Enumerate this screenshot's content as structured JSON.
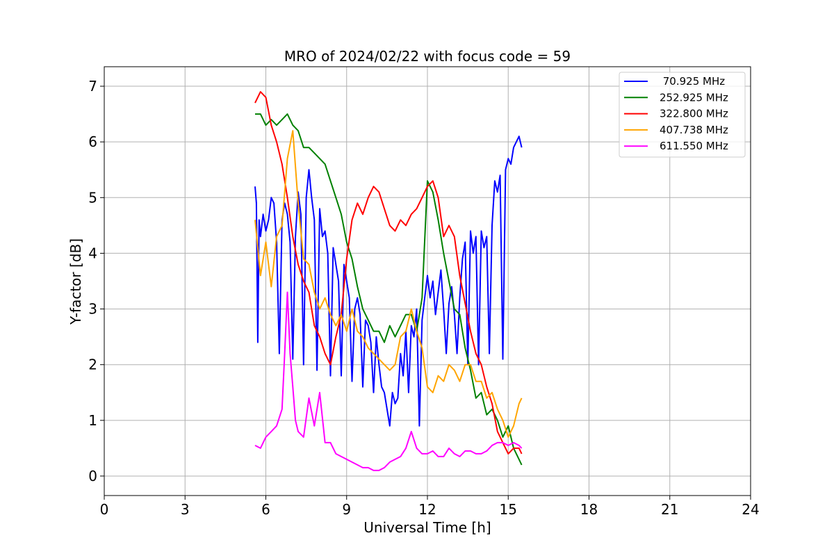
{
  "chart_data": {
    "type": "line",
    "title": "MRO of 2024/02/22 with focus code = 59",
    "xlabel": "Universal Time [h]",
    "ylabel": "Y-factor [dB]",
    "xlim": [
      0,
      24
    ],
    "ylim": [
      -0.35,
      7.35
    ],
    "xticks": [
      0,
      3,
      6,
      9,
      12,
      15,
      18,
      21,
      24
    ],
    "yticks": [
      0,
      1,
      2,
      3,
      4,
      5,
      6,
      7
    ],
    "grid": true,
    "legend_position": "top-right",
    "series": [
      {
        "name": " 70.925 MHz",
        "color": "#0000ff",
        "x": [
          5.6,
          5.65,
          5.7,
          5.75,
          5.8,
          5.9,
          6.0,
          6.1,
          6.2,
          6.3,
          6.4,
          6.5,
          6.6,
          6.7,
          6.8,
          6.9,
          7.0,
          7.1,
          7.2,
          7.3,
          7.4,
          7.5,
          7.6,
          7.7,
          7.8,
          7.9,
          8.0,
          8.1,
          8.2,
          8.3,
          8.4,
          8.5,
          8.6,
          8.7,
          8.8,
          8.9,
          9.0,
          9.1,
          9.2,
          9.3,
          9.4,
          9.5,
          9.6,
          9.7,
          9.8,
          9.9,
          10.0,
          10.1,
          10.2,
          10.3,
          10.4,
          10.5,
          10.6,
          10.7,
          10.8,
          10.9,
          11.0,
          11.1,
          11.2,
          11.3,
          11.4,
          11.5,
          11.6,
          11.7,
          11.8,
          11.9,
          12.0,
          12.1,
          12.2,
          12.3,
          12.4,
          12.5,
          12.6,
          12.7,
          12.8,
          12.9,
          13.0,
          13.1,
          13.2,
          13.3,
          13.4,
          13.5,
          13.6,
          13.7,
          13.8,
          13.9,
          14.0,
          14.1,
          14.2,
          14.3,
          14.4,
          14.5,
          14.6,
          14.7,
          14.8,
          14.9,
          15.0,
          15.1,
          15.2,
          15.3,
          15.4,
          15.5
        ],
        "y": [
          5.2,
          4.9,
          2.4,
          4.6,
          4.3,
          4.7,
          4.4,
          4.6,
          5.0,
          4.9,
          4.2,
          2.2,
          4.6,
          4.9,
          4.7,
          4.2,
          2.1,
          4.3,
          5.1,
          4.7,
          2.0,
          5.0,
          5.5,
          5.0,
          4.6,
          1.9,
          4.8,
          4.3,
          4.4,
          4.0,
          1.8,
          4.1,
          3.8,
          3.5,
          1.8,
          3.8,
          3.5,
          3.2,
          1.7,
          3.0,
          3.2,
          2.9,
          1.6,
          2.8,
          2.7,
          2.4,
          1.5,
          2.5,
          2.0,
          1.6,
          1.5,
          1.2,
          0.9,
          1.5,
          1.3,
          1.4,
          2.2,
          1.8,
          2.6,
          1.5,
          2.7,
          2.5,
          3.0,
          0.9,
          2.8,
          3.2,
          3.6,
          3.2,
          3.5,
          2.9,
          3.3,
          3.7,
          3.0,
          2.2,
          3.1,
          3.4,
          2.9,
          2.2,
          3.2,
          3.9,
          4.2,
          2.0,
          4.4,
          4.0,
          4.3,
          2.0,
          4.4,
          4.1,
          4.3,
          2.2,
          4.5,
          5.3,
          5.1,
          5.4,
          2.1,
          5.5,
          5.7,
          5.6,
          5.9,
          6.0,
          6.1,
          5.9
        ]
      },
      {
        "name": "252.925 MHz",
        "color": "#008000",
        "x": [
          5.6,
          5.8,
          6.0,
          6.2,
          6.4,
          6.6,
          6.8,
          7.0,
          7.2,
          7.4,
          7.6,
          7.8,
          8.0,
          8.2,
          8.4,
          8.6,
          8.8,
          9.0,
          9.2,
          9.4,
          9.6,
          9.8,
          10.0,
          10.2,
          10.4,
          10.6,
          10.8,
          11.0,
          11.2,
          11.4,
          11.6,
          11.8,
          12.0,
          12.2,
          12.4,
          12.6,
          12.8,
          13.0,
          13.2,
          13.4,
          13.6,
          13.8,
          14.0,
          14.2,
          14.4,
          14.6,
          14.8,
          15.0,
          15.2,
          15.4,
          15.5
        ],
        "y": [
          6.5,
          6.5,
          6.3,
          6.4,
          6.3,
          6.4,
          6.5,
          6.3,
          6.2,
          5.9,
          5.9,
          5.8,
          5.7,
          5.6,
          5.3,
          5.0,
          4.7,
          4.2,
          3.9,
          3.4,
          3.0,
          2.8,
          2.6,
          2.6,
          2.4,
          2.7,
          2.5,
          2.7,
          2.9,
          2.9,
          2.6,
          3.2,
          5.3,
          5.1,
          4.6,
          4.0,
          3.5,
          3.0,
          2.9,
          2.3,
          1.9,
          1.4,
          1.5,
          1.1,
          1.2,
          1.0,
          0.7,
          0.9,
          0.5,
          0.3,
          0.2
        ]
      },
      {
        "name": "322.800 MHz",
        "color": "#ff0000",
        "x": [
          5.6,
          5.8,
          6.0,
          6.2,
          6.4,
          6.6,
          6.8,
          7.0,
          7.2,
          7.4,
          7.6,
          7.8,
          8.0,
          8.2,
          8.4,
          8.6,
          8.8,
          9.0,
          9.2,
          9.4,
          9.6,
          9.8,
          10.0,
          10.2,
          10.4,
          10.6,
          10.8,
          11.0,
          11.2,
          11.4,
          11.6,
          11.8,
          12.0,
          12.2,
          12.4,
          12.6,
          12.8,
          13.0,
          13.2,
          13.4,
          13.6,
          13.8,
          14.0,
          14.2,
          14.4,
          14.6,
          14.8,
          15.0,
          15.2,
          15.4,
          15.5
        ],
        "y": [
          6.7,
          6.9,
          6.8,
          6.3,
          6.0,
          5.6,
          5.0,
          4.3,
          3.8,
          3.5,
          3.3,
          2.7,
          2.5,
          2.2,
          2.0,
          2.5,
          2.9,
          3.9,
          4.6,
          4.9,
          4.7,
          5.0,
          5.2,
          5.1,
          4.8,
          4.5,
          4.4,
          4.6,
          4.5,
          4.7,
          4.8,
          5.0,
          5.2,
          5.3,
          5.0,
          4.3,
          4.5,
          4.3,
          3.6,
          3.1,
          2.6,
          2.2,
          2.0,
          1.6,
          1.3,
          0.8,
          0.6,
          0.4,
          0.5,
          0.5,
          0.4
        ]
      },
      {
        "name": "407.738 MHz",
        "color": "#ffa500",
        "x": [
          5.6,
          5.8,
          6.0,
          6.2,
          6.4,
          6.6,
          6.8,
          7.0,
          7.2,
          7.4,
          7.6,
          7.8,
          8.0,
          8.2,
          8.4,
          8.6,
          8.8,
          9.0,
          9.2,
          9.4,
          9.6,
          9.8,
          10.0,
          10.2,
          10.4,
          10.6,
          10.8,
          11.0,
          11.2,
          11.4,
          11.6,
          11.8,
          12.0,
          12.2,
          12.4,
          12.6,
          12.8,
          13.0,
          13.2,
          13.4,
          13.6,
          13.8,
          14.0,
          14.2,
          14.4,
          14.6,
          14.8,
          15.0,
          15.2,
          15.4,
          15.5
        ],
        "y": [
          4.6,
          3.6,
          4.2,
          3.4,
          4.3,
          4.5,
          5.7,
          6.2,
          4.9,
          3.9,
          3.8,
          3.3,
          3.0,
          3.2,
          2.9,
          2.7,
          2.9,
          2.6,
          3.0,
          2.6,
          2.5,
          2.3,
          2.2,
          2.1,
          2.0,
          1.9,
          2.0,
          2.5,
          2.6,
          3.0,
          2.6,
          2.3,
          1.6,
          1.5,
          1.8,
          1.7,
          2.0,
          1.9,
          1.7,
          2.0,
          2.0,
          1.7,
          1.7,
          1.4,
          1.5,
          1.2,
          1.0,
          0.7,
          0.9,
          1.3,
          1.4
        ]
      },
      {
        "name": "611.550 MHz",
        "color": "#ff00ff",
        "x": [
          5.6,
          5.8,
          6.0,
          6.2,
          6.4,
          6.6,
          6.7,
          6.8,
          6.9,
          7.0,
          7.1,
          7.2,
          7.4,
          7.6,
          7.8,
          8.0,
          8.2,
          8.4,
          8.6,
          8.8,
          9.0,
          9.2,
          9.4,
          9.6,
          9.8,
          10.0,
          10.2,
          10.4,
          10.6,
          10.8,
          11.0,
          11.2,
          11.4,
          11.6,
          11.8,
          12.0,
          12.2,
          12.4,
          12.6,
          12.8,
          13.0,
          13.2,
          13.4,
          13.6,
          13.8,
          14.0,
          14.2,
          14.4,
          14.6,
          14.8,
          15.0,
          15.2,
          15.4,
          15.5
        ],
        "y": [
          0.55,
          0.5,
          0.7,
          0.8,
          0.9,
          1.2,
          2.2,
          3.3,
          2.2,
          1.6,
          1.0,
          0.8,
          0.7,
          1.4,
          0.9,
          1.5,
          0.6,
          0.6,
          0.4,
          0.35,
          0.3,
          0.25,
          0.2,
          0.15,
          0.15,
          0.1,
          0.1,
          0.15,
          0.25,
          0.3,
          0.35,
          0.5,
          0.8,
          0.5,
          0.4,
          0.4,
          0.45,
          0.35,
          0.35,
          0.5,
          0.4,
          0.35,
          0.45,
          0.45,
          0.4,
          0.4,
          0.45,
          0.55,
          0.6,
          0.6,
          0.55,
          0.6,
          0.55,
          0.5
        ]
      }
    ]
  }
}
